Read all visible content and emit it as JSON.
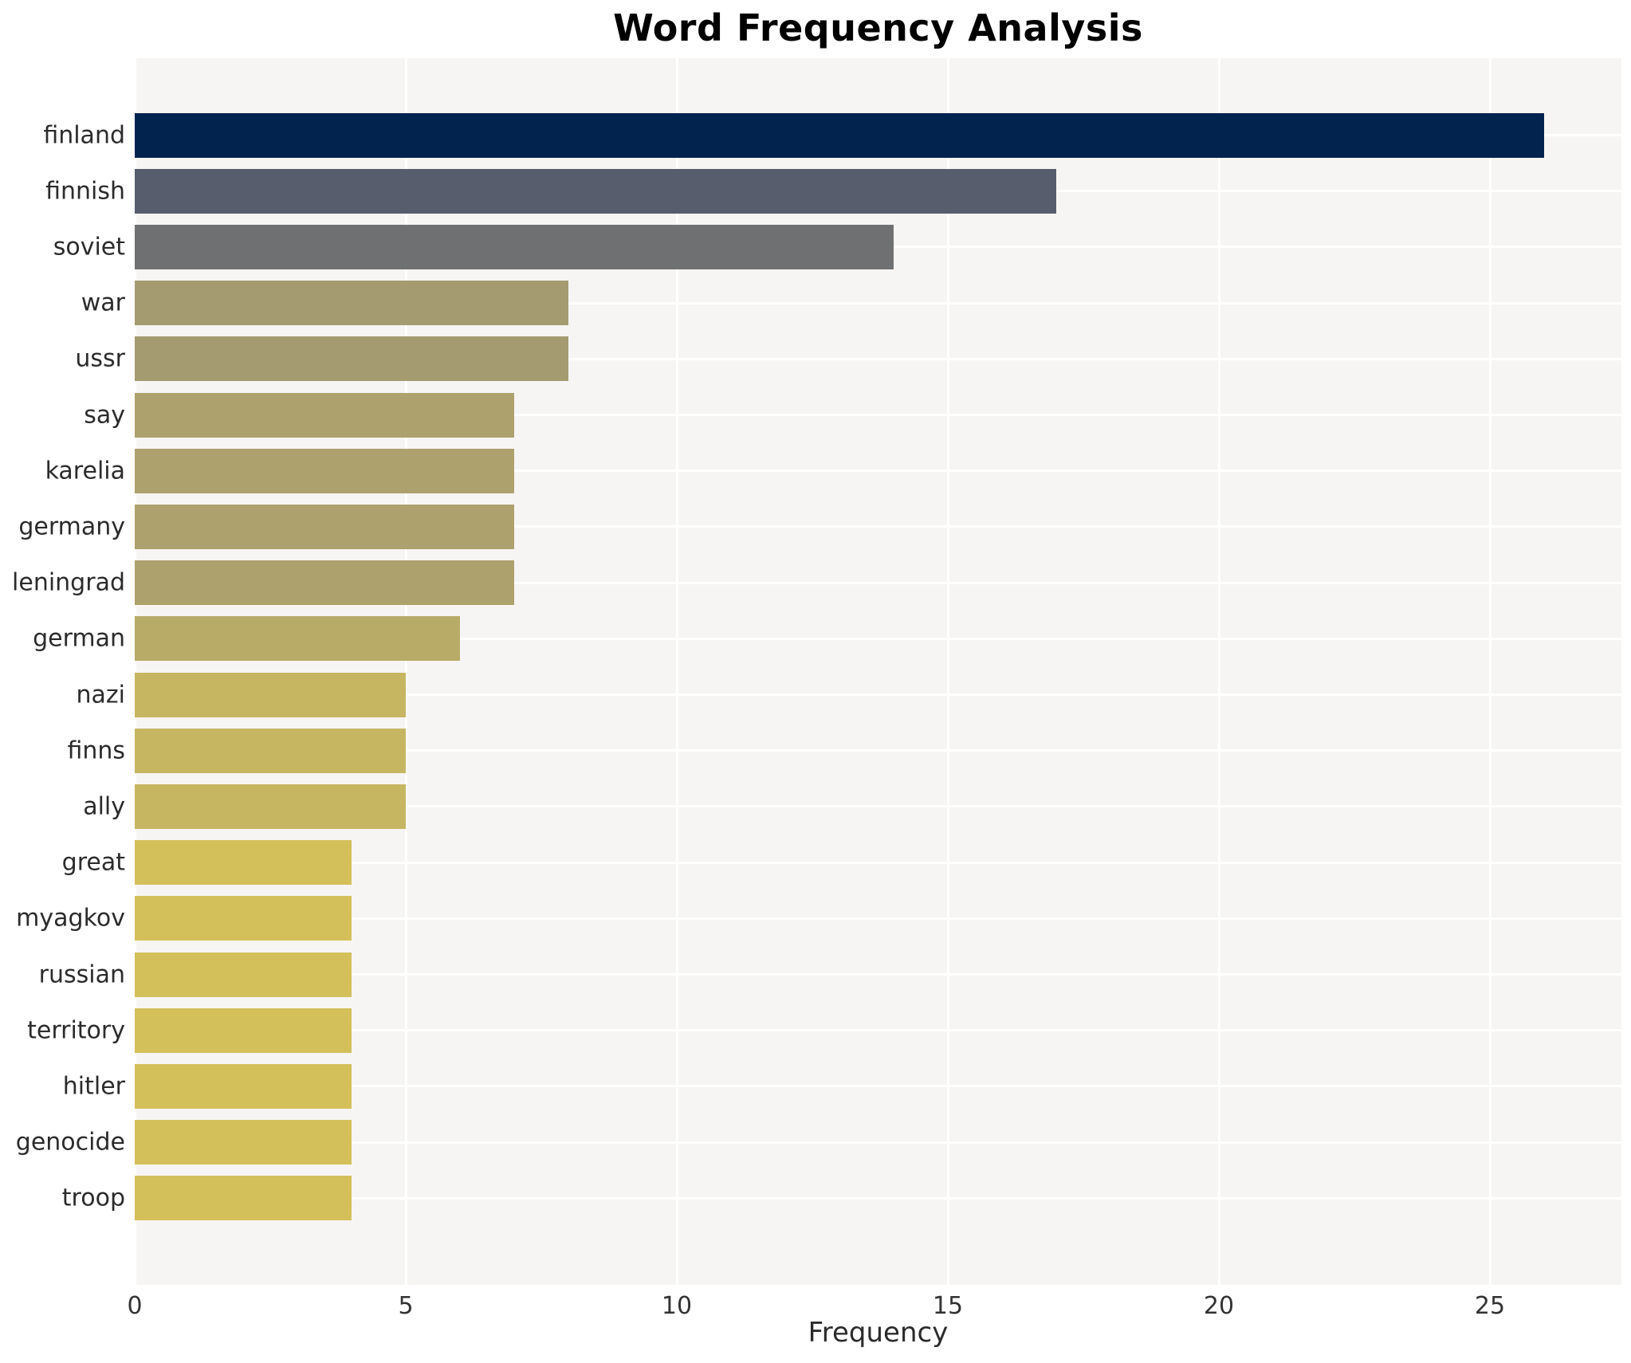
{
  "title": "Word Frequency Analysis",
  "chart_data": {
    "type": "bar",
    "orientation": "horizontal",
    "title": "Word Frequency Analysis",
    "xlabel": "Frequency",
    "ylabel": "",
    "categories": [
      "finland",
      "finnish",
      "soviet",
      "war",
      "ussr",
      "say",
      "karelia",
      "germany",
      "leningrad",
      "german",
      "nazi",
      "finns",
      "ally",
      "great",
      "myagkov",
      "russian",
      "territory",
      "hitler",
      "genocide",
      "troop"
    ],
    "values": [
      26,
      17,
      14,
      8,
      8,
      7,
      7,
      7,
      7,
      6,
      5,
      5,
      5,
      4,
      4,
      4,
      4,
      4,
      4,
      4
    ],
    "bar_colors": [
      "#01234e",
      "#575d6d",
      "#6f7072",
      "#a49b71",
      "#a49b71",
      "#ada16d",
      "#ada16d",
      "#ada16d",
      "#ada16d",
      "#b8ab68",
      "#c6b662",
      "#c6b662",
      "#c6b662",
      "#d3c05b",
      "#d3c05b",
      "#d3c05b",
      "#d3c05b",
      "#d3c05b",
      "#d3c05b",
      "#d3c05b"
    ],
    "xticks": [
      0,
      5,
      10,
      15,
      20,
      25
    ],
    "xlim": [
      0,
      27.4
    ],
    "grid": true,
    "legend": "none",
    "colors": {
      "plot_background": "#f6f5f3",
      "gridline": "#ffffff",
      "title_text": "#000000",
      "tick_text": "#333333",
      "label_text": "#2b2b2b",
      "max_bar": "#01234e",
      "min_bar": "#d3c05b"
    }
  }
}
